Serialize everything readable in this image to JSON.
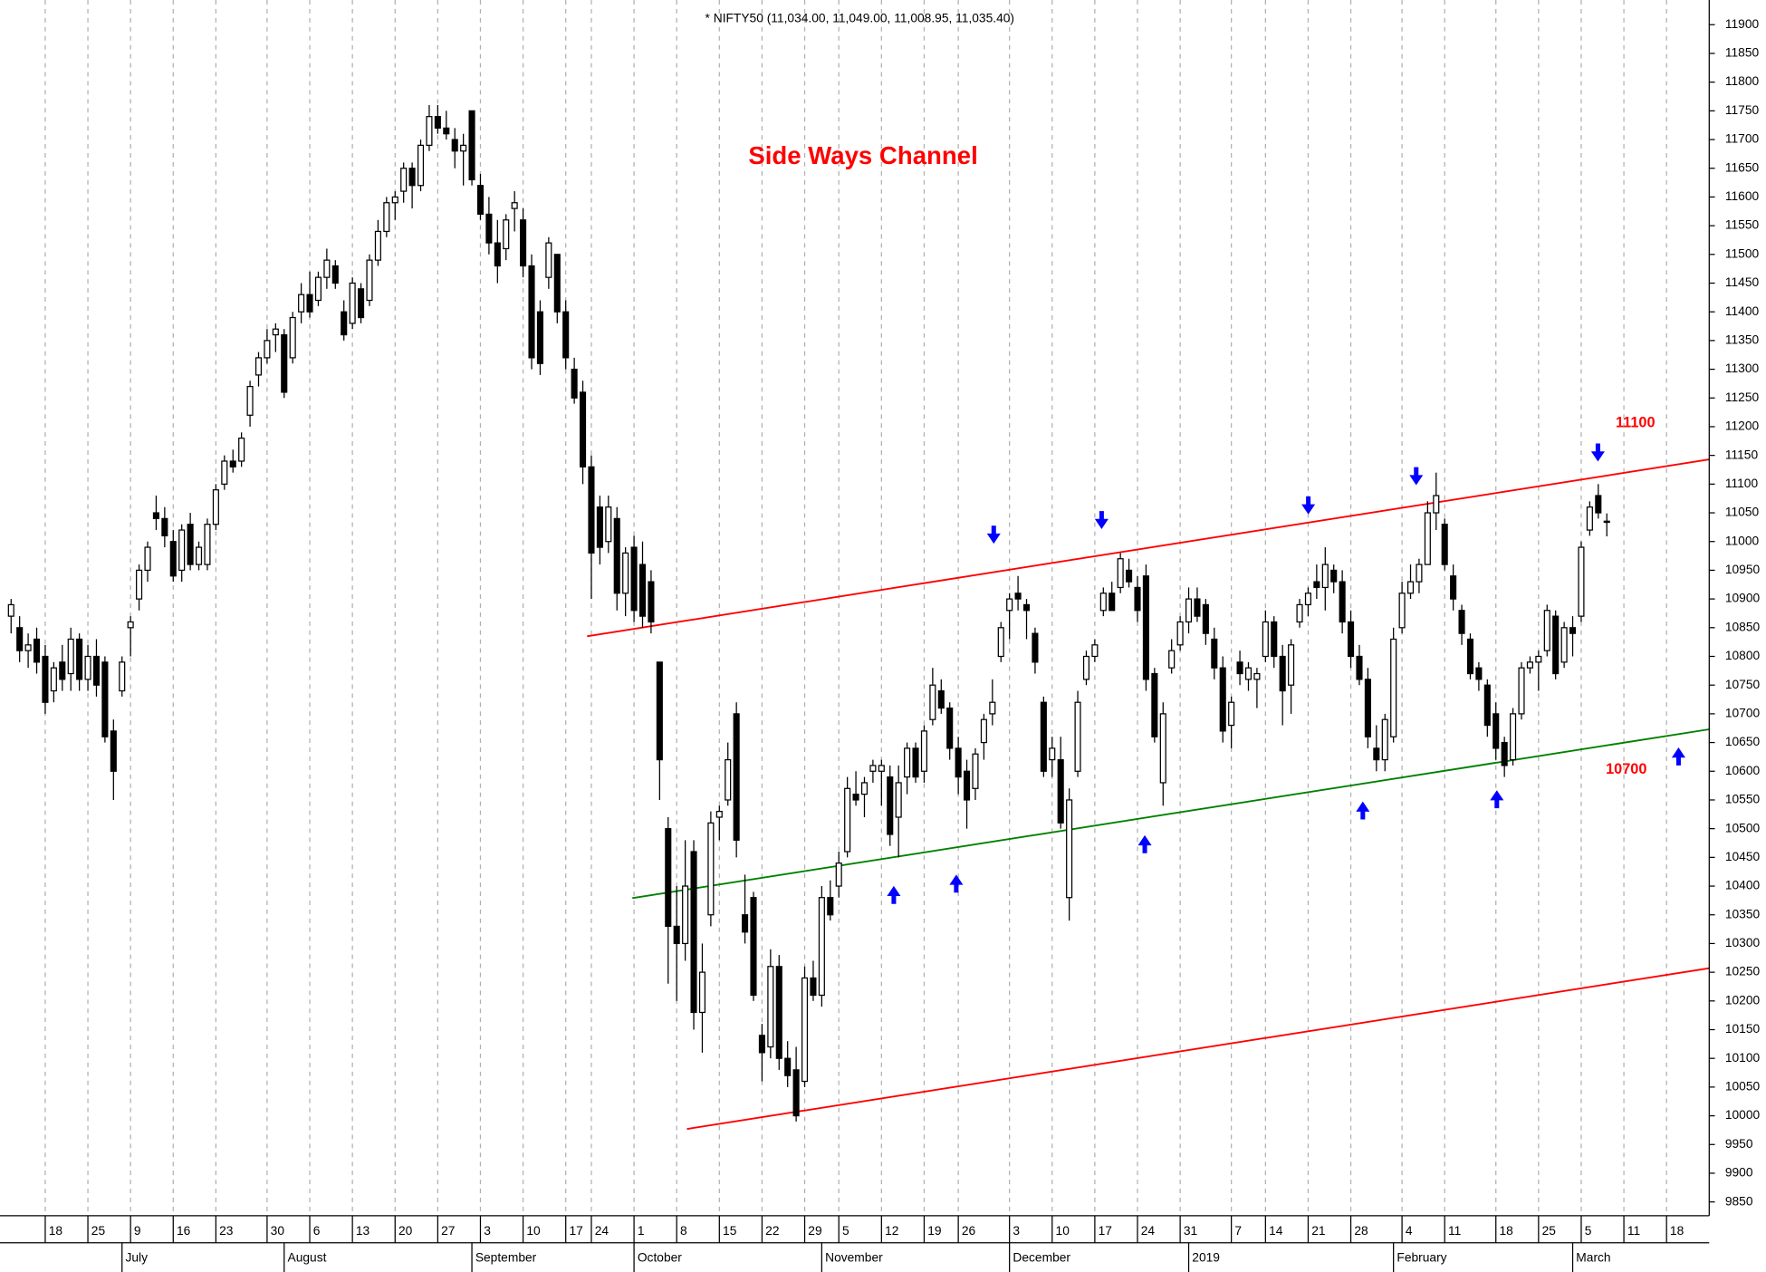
{
  "chart_data": {
    "type": "candlestick",
    "title": "* NIFTY50 (11,034.00, 11,049.00, 11,008.95, 11,035.40)",
    "annotation": "Side Ways Channel",
    "up_color": "#ffffff",
    "down_color": "#000000",
    "ylim": [
      9826,
      11943
    ],
    "yticks": [
      9850,
      9900,
      9950,
      10000,
      10050,
      10100,
      10150,
      10200,
      10250,
      10300,
      10350,
      10400,
      10450,
      10500,
      10550,
      10600,
      10650,
      10700,
      10750,
      10800,
      10850,
      10900,
      10950,
      11000,
      11050,
      11100,
      11150,
      11200,
      11250,
      11300,
      11350,
      11400,
      11450,
      11500,
      11550,
      11600,
      11650,
      11700,
      11750,
      11800,
      11850,
      11900
    ],
    "xlim": [
      -1.3,
      199
    ],
    "xticks": [
      {
        "value": 4,
        "label": "18"
      },
      {
        "value": 9,
        "label": "25"
      },
      {
        "value": 14,
        "label": "9"
      },
      {
        "value": 19,
        "label": "16"
      },
      {
        "value": 24,
        "label": "23"
      },
      {
        "value": 30,
        "label": "30"
      },
      {
        "value": 35,
        "label": "6"
      },
      {
        "value": 40,
        "label": "13"
      },
      {
        "value": 45,
        "label": "20"
      },
      {
        "value": 50,
        "label": "27"
      },
      {
        "value": 55,
        "label": "3"
      },
      {
        "value": 60,
        "label": "10"
      },
      {
        "value": 65,
        "label": "17"
      },
      {
        "value": 68,
        "label": "24"
      },
      {
        "value": 73,
        "label": "1"
      },
      {
        "value": 78,
        "label": "8"
      },
      {
        "value": 83,
        "label": "15"
      },
      {
        "value": 88,
        "label": "22"
      },
      {
        "value": 93,
        "label": "29"
      },
      {
        "value": 97,
        "label": "5"
      },
      {
        "value": 102,
        "label": "12"
      },
      {
        "value": 107,
        "label": "19"
      },
      {
        "value": 111,
        "label": "26"
      },
      {
        "value": 117,
        "label": "3"
      },
      {
        "value": 122,
        "label": "10"
      },
      {
        "value": 127,
        "label": "17"
      },
      {
        "value": 132,
        "label": "24"
      },
      {
        "value": 137,
        "label": "31"
      },
      {
        "value": 143,
        "label": "7"
      },
      {
        "value": 147,
        "label": "14"
      },
      {
        "value": 152,
        "label": "21"
      },
      {
        "value": 157,
        "label": "28"
      },
      {
        "value": 163,
        "label": "4"
      },
      {
        "value": 168,
        "label": "11"
      },
      {
        "value": 174,
        "label": "18"
      },
      {
        "value": 179,
        "label": "25"
      },
      {
        "value": 184,
        "label": "5"
      },
      {
        "value": 189,
        "label": "11"
      },
      {
        "value": 194,
        "label": "18"
      }
    ],
    "month_ticks": [
      {
        "value": 13,
        "label": "July"
      },
      {
        "value": 32,
        "label": "August"
      },
      {
        "value": 54,
        "label": "September"
      },
      {
        "value": 73,
        "label": "October"
      },
      {
        "value": 95,
        "label": "November"
      },
      {
        "value": 117,
        "label": "December"
      },
      {
        "value": 138,
        "label": "2019"
      },
      {
        "value": 162,
        "label": "February"
      },
      {
        "value": 183,
        "label": "March"
      }
    ],
    "trendlines": [
      {
        "color": "#ff0000",
        "x": [
          67.5,
          199
        ],
        "y": [
          10835,
          11143
        ]
      },
      {
        "color": "#008000",
        "x": [
          72.8,
          199
        ],
        "y": [
          10379,
          10673
        ]
      },
      {
        "color": "#ff0000",
        "x": [
          79.2,
          199
        ],
        "y": [
          9977,
          10257
        ]
      }
    ],
    "level_labels": [
      "11100",
      "10700"
    ],
    "candles": [
      [
        10870,
        10900,
        10840,
        10890
      ],
      [
        10850,
        10870,
        10790,
        10810
      ],
      [
        10810,
        10840,
        10780,
        10820
      ],
      [
        10830,
        10850,
        10770,
        10790
      ],
      [
        10800,
        10820,
        10700,
        10720
      ],
      [
        10740,
        10790,
        10720,
        10780
      ],
      [
        10790,
        10820,
        10740,
        10760
      ],
      [
        10770,
        10850,
        10740,
        10830
      ],
      [
        10830,
        10840,
        10740,
        10760
      ],
      [
        10760,
        10820,
        10740,
        10800
      ],
      [
        10800,
        10830,
        10730,
        10750
      ],
      [
        10790,
        10800,
        10650,
        10660
      ],
      [
        10670,
        10690,
        10550,
        10600
      ],
      [
        10740,
        10800,
        10730,
        10790
      ],
      [
        10850,
        10870,
        10800,
        10860
      ],
      [
        10900,
        10960,
        10880,
        10950
      ],
      [
        10950,
        11000,
        10930,
        10990
      ],
      [
        11050,
        11080,
        11020,
        11040
      ],
      [
        11040,
        11060,
        10990,
        11010
      ],
      [
        11000,
        11020,
        10930,
        10940
      ],
      [
        10950,
        11030,
        10930,
        11020
      ],
      [
        11030,
        11050,
        10950,
        10960
      ],
      [
        10960,
        11000,
        10950,
        10990
      ],
      [
        10960,
        11040,
        10950,
        11030
      ],
      [
        11030,
        11100,
        11020,
        11090
      ],
      [
        11100,
        11150,
        11090,
        11140
      ],
      [
        11140,
        11160,
        11120,
        11130
      ],
      [
        11140,
        11190,
        11130,
        11180
      ],
      [
        11220,
        11280,
        11200,
        11270
      ],
      [
        11290,
        11330,
        11270,
        11320
      ],
      [
        11320,
        11370,
        11310,
        11350
      ],
      [
        11360,
        11380,
        11330,
        11370
      ],
      [
        11360,
        11370,
        11250,
        11260
      ],
      [
        11320,
        11400,
        11310,
        11390
      ],
      [
        11400,
        11450,
        11380,
        11430
      ],
      [
        11430,
        11470,
        11390,
        11400
      ],
      [
        11420,
        11470,
        11410,
        11460
      ],
      [
        11460,
        11510,
        11440,
        11490
      ],
      [
        11480,
        11490,
        11440,
        11450
      ],
      [
        11400,
        11420,
        11350,
        11360
      ],
      [
        11380,
        11460,
        11370,
        11450
      ],
      [
        11440,
        11450,
        11380,
        11390
      ],
      [
        11420,
        11500,
        11410,
        11490
      ],
      [
        11490,
        11560,
        11480,
        11540
      ],
      [
        11540,
        11600,
        11530,
        11590
      ],
      [
        11590,
        11610,
        11560,
        11600
      ],
      [
        11610,
        11660,
        11590,
        11650
      ],
      [
        11650,
        11660,
        11580,
        11620
      ],
      [
        11620,
        11700,
        11610,
        11690
      ],
      [
        11690,
        11760,
        11680,
        11740
      ],
      [
        11740,
        11760,
        11710,
        11720
      ],
      [
        11720,
        11750,
        11700,
        11710
      ],
      [
        11700,
        11720,
        11650,
        11680
      ],
      [
        11680,
        11710,
        11620,
        11690
      ],
      [
        11750,
        11750,
        11620,
        11630
      ],
      [
        11620,
        11640,
        11560,
        11570
      ],
      [
        11570,
        11600,
        11500,
        11520
      ],
      [
        11520,
        11560,
        11450,
        11480
      ],
      [
        11510,
        11570,
        11490,
        11560
      ],
      [
        11580,
        11610,
        11540,
        11590
      ],
      [
        11560,
        11580,
        11460,
        11480
      ],
      [
        11480,
        11500,
        11300,
        11320
      ],
      [
        11400,
        11420,
        11290,
        11310
      ],
      [
        11460,
        11530,
        11440,
        11520
      ],
      [
        11500,
        11500,
        11380,
        11400
      ],
      [
        11400,
        11420,
        11300,
        11320
      ],
      [
        11300,
        11320,
        11240,
        11250
      ],
      [
        11260,
        11280,
        11100,
        11130
      ],
      [
        11130,
        11150,
        10900,
        10980
      ],
      [
        11060,
        11080,
        10960,
        10990
      ],
      [
        11000,
        11080,
        10980,
        11060
      ],
      [
        11040,
        11060,
        10880,
        10910
      ],
      [
        10910,
        10990,
        10870,
        10980
      ],
      [
        10990,
        11010,
        10860,
        10880
      ],
      [
        10960,
        11000,
        10850,
        10870
      ],
      [
        10930,
        10950,
        10840,
        10860
      ],
      [
        10790,
        10790,
        10550,
        10620
      ],
      [
        10500,
        10520,
        10230,
        10330
      ],
      [
        10330,
        10400,
        10200,
        10300
      ],
      [
        10300,
        10480,
        10270,
        10400
      ],
      [
        10460,
        10480,
        10150,
        10180
      ],
      [
        10180,
        10300,
        10110,
        10250
      ],
      [
        10350,
        10530,
        10330,
        10510
      ],
      [
        10520,
        10540,
        10480,
        10530
      ],
      [
        10550,
        10650,
        10540,
        10620
      ],
      [
        10700,
        10720,
        10450,
        10480
      ],
      [
        10350,
        10420,
        10300,
        10320
      ],
      [
        10380,
        10390,
        10200,
        10210
      ],
      [
        10140,
        10160,
        10060,
        10110
      ],
      [
        10120,
        10290,
        10100,
        10260
      ],
      [
        10260,
        10280,
        10080,
        10100
      ],
      [
        10100,
        10130,
        10050,
        10070
      ],
      [
        10080,
        10120,
        9990,
        10000
      ],
      [
        10060,
        10260,
        10050,
        10240
      ],
      [
        10240,
        10270,
        10200,
        10210
      ],
      [
        10210,
        10400,
        10190,
        10380
      ],
      [
        10380,
        10410,
        10340,
        10350
      ],
      [
        10400,
        10460,
        10380,
        10440
      ],
      [
        10460,
        10590,
        10450,
        10570
      ],
      [
        10560,
        10600,
        10540,
        10550
      ],
      [
        10560,
        10590,
        10520,
        10580
      ],
      [
        10600,
        10620,
        10580,
        10610
      ],
      [
        10600,
        10620,
        10540,
        10610
      ],
      [
        10590,
        10610,
        10470,
        10490
      ],
      [
        10520,
        10610,
        10450,
        10580
      ],
      [
        10590,
        10650,
        10560,
        10640
      ],
      [
        10640,
        10650,
        10580,
        10590
      ],
      [
        10600,
        10680,
        10580,
        10670
      ],
      [
        10690,
        10780,
        10680,
        10750
      ],
      [
        10740,
        10760,
        10700,
        10710
      ],
      [
        10710,
        10720,
        10620,
        10640
      ],
      [
        10640,
        10660,
        10560,
        10590
      ],
      [
        10600,
        10620,
        10500,
        10550
      ],
      [
        10570,
        10640,
        10550,
        10630
      ],
      [
        10650,
        10700,
        10620,
        10690
      ],
      [
        10700,
        10760,
        10680,
        10720
      ],
      [
        10800,
        10860,
        10790,
        10850
      ],
      [
        10880,
        10910,
        10830,
        10900
      ],
      [
        10910,
        10940,
        10880,
        10900
      ],
      [
        10890,
        10900,
        10830,
        10880
      ],
      [
        10840,
        10850,
        10770,
        10790
      ],
      [
        10720,
        10730,
        10590,
        10600
      ],
      [
        10620,
        10660,
        10590,
        10640
      ],
      [
        10620,
        10660,
        10500,
        10510
      ],
      [
        10380,
        10570,
        10340,
        10550
      ],
      [
        10600,
        10740,
        10590,
        10720
      ],
      [
        10760,
        10810,
        10750,
        10800
      ],
      [
        10800,
        10830,
        10790,
        10820
      ],
      [
        10880,
        10920,
        10870,
        10910
      ],
      [
        10910,
        10930,
        10880,
        10880
      ],
      [
        10920,
        10980,
        10910,
        10970
      ],
      [
        10950,
        10970,
        10920,
        10930
      ],
      [
        10920,
        10940,
        10860,
        10880
      ],
      [
        10940,
        10960,
        10740,
        10760
      ],
      [
        10770,
        10780,
        10650,
        10660
      ],
      [
        10580,
        10720,
        10540,
        10700
      ],
      [
        10780,
        10830,
        10770,
        10810
      ],
      [
        10820,
        10870,
        10810,
        10860
      ],
      [
        10860,
        10920,
        10840,
        10900
      ],
      [
        10900,
        10920,
        10860,
        10870
      ],
      [
        10890,
        10900,
        10820,
        10840
      ],
      [
        10830,
        10850,
        10760,
        10780
      ],
      [
        10780,
        10800,
        10650,
        10670
      ],
      [
        10680,
        10730,
        10640,
        10720
      ],
      [
        10790,
        10810,
        10750,
        10770
      ],
      [
        10760,
        10790,
        10740,
        10780
      ],
      [
        10760,
        10780,
        10710,
        10770
      ],
      [
        10800,
        10880,
        10790,
        10860
      ],
      [
        10860,
        10870,
        10780,
        10800
      ],
      [
        10800,
        10820,
        10680,
        10740
      ],
      [
        10750,
        10830,
        10700,
        10820
      ],
      [
        10860,
        10900,
        10850,
        10890
      ],
      [
        10890,
        10920,
        10870,
        10910
      ],
      [
        10930,
        10960,
        10900,
        10920
      ],
      [
        10920,
        10990,
        10880,
        10960
      ],
      [
        10950,
        10960,
        10910,
        10930
      ],
      [
        10930,
        10950,
        10840,
        10860
      ],
      [
        10860,
        10880,
        10780,
        10800
      ],
      [
        10800,
        10820,
        10750,
        10760
      ],
      [
        10760,
        10780,
        10640,
        10660
      ],
      [
        10640,
        10680,
        10600,
        10620
      ],
      [
        10620,
        10700,
        10600,
        10690
      ],
      [
        10660,
        10850,
        10650,
        10830
      ],
      [
        10850,
        10930,
        10840,
        10910
      ],
      [
        10910,
        10960,
        10900,
        10930
      ],
      [
        10930,
        10970,
        10910,
        10960
      ],
      [
        10960,
        11070,
        10960,
        11050
      ],
      [
        11050,
        11120,
        11020,
        11080
      ],
      [
        11030,
        11040,
        10950,
        10960
      ],
      [
        10940,
        10960,
        10880,
        10900
      ],
      [
        10880,
        10890,
        10820,
        10840
      ],
      [
        10830,
        10840,
        10760,
        10770
      ],
      [
        10780,
        10790,
        10740,
        10760
      ],
      [
        10750,
        10760,
        10660,
        10680
      ],
      [
        10700,
        10720,
        10620,
        10640
      ],
      [
        10650,
        10660,
        10590,
        10610
      ],
      [
        10620,
        10710,
        10610,
        10700
      ],
      [
        10700,
        10790,
        10690,
        10780
      ],
      [
        10780,
        10800,
        10770,
        10790
      ],
      [
        10790,
        10810,
        10740,
        10800
      ],
      [
        10810,
        10890,
        10800,
        10880
      ],
      [
        10870,
        10880,
        10760,
        10770
      ],
      [
        10790,
        10860,
        10780,
        10850
      ],
      [
        10850,
        10870,
        10800,
        10840
      ],
      [
        10870,
        11000,
        10860,
        10990
      ],
      [
        11020,
        11070,
        11010,
        11060
      ],
      [
        11080,
        11100,
        11040,
        11050
      ],
      [
        11034,
        11049,
        11008.95,
        11035.4
      ]
    ]
  }
}
